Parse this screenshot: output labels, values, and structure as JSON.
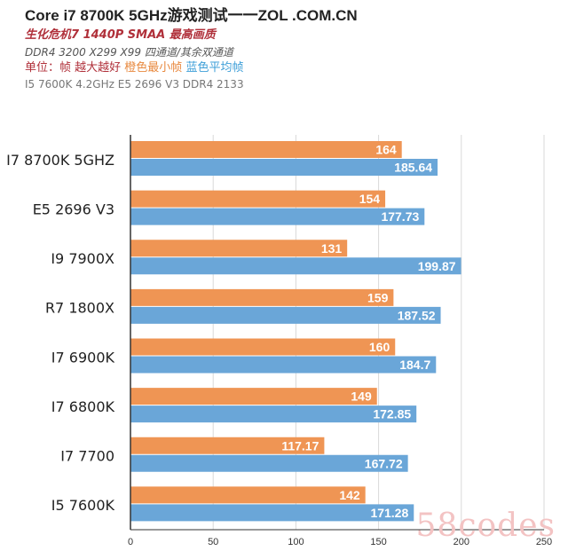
{
  "header": {
    "title": "Core i7 8700K 5GHz游戏测试一一ZOL .COM.CN",
    "subtitle": "生化危机7 1440P SMAA 最高画质",
    "spec": "DDR4 3200  X299 X99 四通道/其余双通道",
    "unit_label": "单位：帧 越大越好",
    "legend_min": "橙色最小帧",
    "legend_avg": "蓝色平均帧",
    "note": "I5 7600K 4.2GHz  E5 2696 V3 DDR4 2133"
  },
  "colors": {
    "min_bar": "#ef9554",
    "avg_bar": "#6aa6d8",
    "axis": "#333333",
    "grid": "#d9d9d9"
  },
  "watermark": "58codes",
  "chart_data": {
    "type": "bar",
    "orientation": "horizontal",
    "categories": [
      "I7 8700K 5GHZ",
      "E5 2696 V3",
      "I9 7900X",
      "R7 1800X",
      "I7 6900K",
      "I7 6800K",
      "I7 7700",
      "I5 7600K"
    ],
    "series": [
      {
        "name": "橙色最小帧",
        "values": [
          164,
          154,
          131,
          159,
          160,
          149,
          117.17,
          142
        ]
      },
      {
        "name": "蓝色平均帧",
        "values": [
          185.64,
          177.73,
          199.87,
          187.52,
          184.7,
          172.85,
          167.72,
          171.28
        ]
      }
    ],
    "value_labels": [
      [
        "164",
        "154",
        "131",
        "159",
        "160",
        "149",
        "117.17",
        "142"
      ],
      [
        "185.64",
        "177.73",
        "199.87",
        "187.52",
        "184.7",
        "172.85",
        "167.72",
        "171.28"
      ]
    ],
    "xlim": [
      0,
      250
    ],
    "xticks": [
      0,
      50,
      100,
      150,
      200,
      250
    ],
    "grid": true
  }
}
